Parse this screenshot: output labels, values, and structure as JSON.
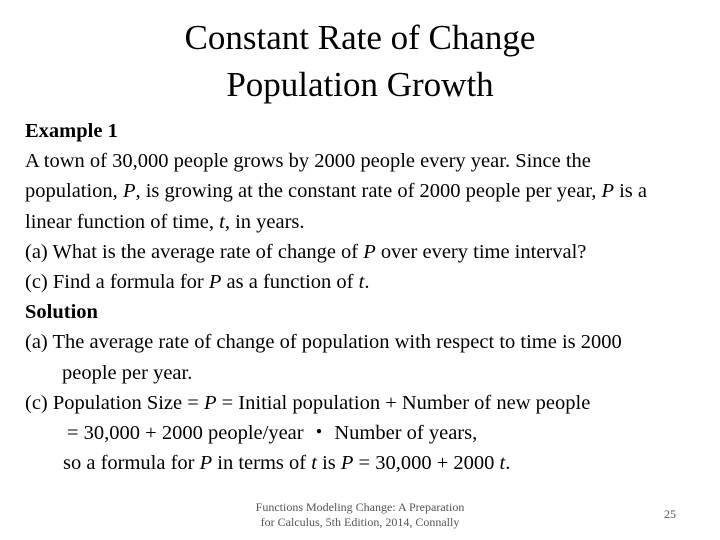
{
  "title": {
    "line1": "Constant Rate of Change",
    "line2": "Population Growth"
  },
  "example": {
    "heading": "Example 1",
    "line1": "A town of 30,000 people grows by 2000 people every year. Since the",
    "line2_a": "population, ",
    "line2_b": "P",
    "line2_c": ", is growing at the constant rate of 2000 people per year, ",
    "line2_d": "P",
    "line2_e": " is a",
    "line3_a": "linear function of time, ",
    "line3_b": "t",
    "line3_c": ", in years.",
    "qa_a": "(a)  What is the average rate of change of ",
    "qa_b": "P",
    "qa_c": " over every time interval?",
    "qc_a": "(c)  Find a formula for ",
    "qc_b": "P",
    "qc_c": " as a function of ",
    "qc_d": "t",
    "qc_e": "."
  },
  "solution": {
    "heading": "Solution",
    "sa_line1": "(a)  The average rate of change of population with respect to time is 2000",
    "sa_line2": "people per year.",
    "sc_line1_a": "(c)  Population Size = ",
    "sc_line1_b": "P",
    "sc_line1_c": " = Initial population + Number of new people",
    "sc_line2": "= 30,000 + 2000 people/year  ・  Number of years,",
    "sc_line3_a": "so a formula for ",
    "sc_line3_b": "P",
    "sc_line3_c": " in terms of ",
    "sc_line3_d": "t",
    "sc_line3_e": " is ",
    "sc_line3_f": "P",
    "sc_line3_g": " = 30,000 + 2000 ",
    "sc_line3_h": "t",
    "sc_line3_i": "."
  },
  "footer": {
    "line1": "Functions Modeling Change: A Preparation",
    "line2": "for Calculus, 5th Edition, 2014, Connally",
    "page_number": "25"
  }
}
